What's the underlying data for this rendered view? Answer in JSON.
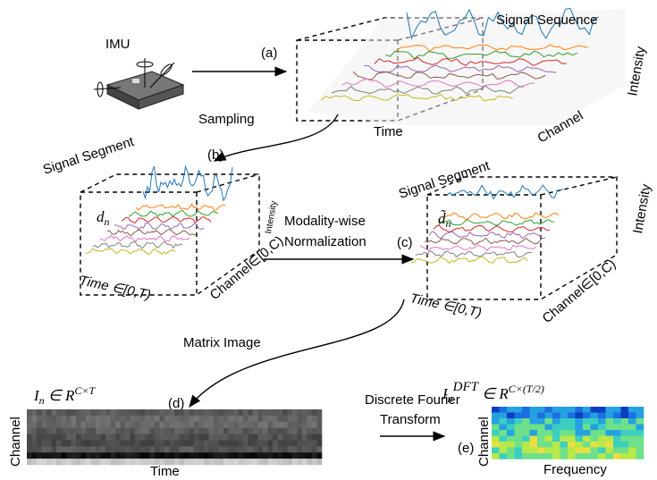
{
  "imu": {
    "label": "IMU"
  },
  "panel_a": {
    "tag": "(a)",
    "title": "Signal Sequence",
    "z_axis": "Intensity",
    "y_axis": "Channel",
    "x_axis": "Time"
  },
  "arrow_sampling": {
    "label": "Sampling"
  },
  "panel_b": {
    "tag": "(b)",
    "title": "Signal Segment",
    "symbol": {
      "base": "d",
      "sub": "n"
    },
    "z_axis": "Intensity",
    "x_axis": "Time ∈[0,T)",
    "y_axis": "Channel∈[0,C)"
  },
  "arrow_normalization": {
    "lines": [
      "Modality-wise",
      "Normalization"
    ]
  },
  "panel_c": {
    "tag": "(c)",
    "title": "Signal Segment",
    "symbol": {
      "base": "d̃",
      "sub": "n"
    },
    "z_axis": "Intensity",
    "x_axis": "Time ∈[0,T)",
    "y_axis": "Channel∈[0,C)"
  },
  "arrow_matrix": {
    "label": "Matrix Image"
  },
  "panel_d": {
    "tag": "(d)",
    "formula": {
      "base": "I",
      "sub": "n",
      "rel": " ∈ R",
      "sup": "C×T"
    },
    "y_axis": "Channel",
    "x_axis": "Time"
  },
  "arrow_dft": {
    "lines": [
      "Discrete Fourier",
      "Transform"
    ]
  },
  "panel_e": {
    "tag": "(e)",
    "formula": {
      "base": "I",
      "sub": "n",
      "sup1": "DFT",
      "rel": " ∈ R",
      "sup": "C×(T/2)"
    },
    "y_axis": "Channel",
    "x_axis": "Frequency"
  }
}
